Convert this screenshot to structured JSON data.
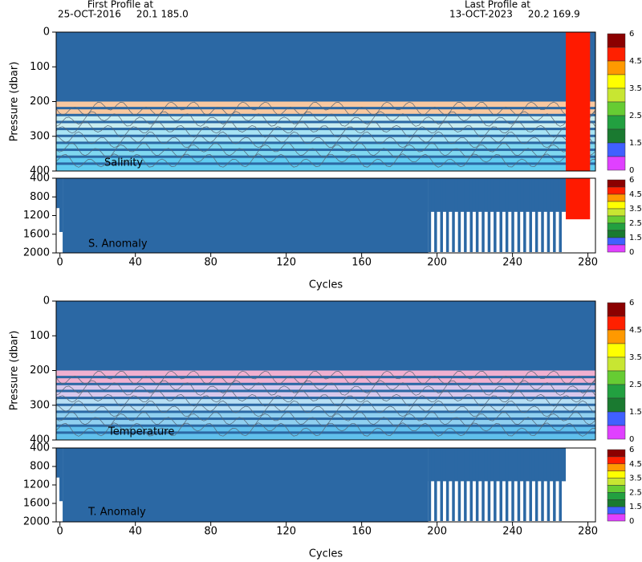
{
  "header": {
    "first_label": "First Profile at",
    "first_info": "25-OCT-2016     20.1 185.0",
    "last_label": "Last Profile at",
    "last_info": "13-OCT-2023     20.2 169.9"
  },
  "chart_data": [
    {
      "type": "profile",
      "label": "Salinity",
      "ylabel": "Pressure (dbar)",
      "xlim": [
        -2,
        284
      ],
      "ylim": [
        400,
        0
      ],
      "yticks": [
        0,
        100,
        200,
        300,
        400
      ],
      "colorbar_ticks": [
        6,
        4.5,
        3.5,
        2.5,
        1.5,
        0
      ],
      "colorbar_colors": [
        "#8b0000",
        "#ff2000",
        "#ff9900",
        "#ffff00",
        "#c8e632",
        "#66cc33",
        "#22a040",
        "#1a7a30",
        "#4060ff",
        "#e040ff"
      ],
      "flag": true
    },
    {
      "type": "anomaly",
      "label": "S. Anomaly",
      "xlabel": "Cycles",
      "xlim": [
        -2,
        284
      ],
      "ylim": [
        2000,
        400
      ],
      "xticks": [
        0,
        40,
        80,
        120,
        160,
        200,
        240,
        280
      ],
      "yticks": [
        400,
        800,
        1200,
        1600,
        2000
      ],
      "colorbar_ticks": [
        6,
        4.5,
        3.5,
        2.5,
        1.5,
        0
      ],
      "colorbar_colors": [
        "#8b0000",
        "#ff2000",
        "#ff9900",
        "#ffff00",
        "#c8e632",
        "#66cc33",
        "#22a040",
        "#1a7a30",
        "#4060ff",
        "#e040ff"
      ],
      "flag": true
    },
    {
      "type": "profile",
      "label": "Temperature",
      "ylabel": "Pressure (dbar)",
      "xlim": [
        -2,
        284
      ],
      "ylim": [
        400,
        0
      ],
      "yticks": [
        0,
        100,
        200,
        300,
        400
      ],
      "colorbar_ticks": [
        6,
        4.5,
        3.5,
        2.5,
        1.5,
        0
      ],
      "colorbar_colors": [
        "#8b0000",
        "#ff2000",
        "#ff9900",
        "#ffff00",
        "#c8e632",
        "#66cc33",
        "#22a040",
        "#1a7a30",
        "#4060ff",
        "#e040ff"
      ],
      "flag": false
    },
    {
      "type": "anomaly",
      "label": "T. Anomaly",
      "xlabel": "Cycles",
      "xlim": [
        -2,
        284
      ],
      "ylim": [
        2000,
        400
      ],
      "xticks": [
        0,
        40,
        80,
        120,
        160,
        200,
        240,
        280
      ],
      "yticks": [
        400,
        800,
        1200,
        1600,
        2000
      ],
      "colorbar_ticks": [
        6,
        4.5,
        3.5,
        2.5,
        1.5,
        0
      ],
      "colorbar_colors": [
        "#8b0000",
        "#ff2000",
        "#ff9900",
        "#ffff00",
        "#c8e632",
        "#66cc33",
        "#22a040",
        "#1a7a30",
        "#4060ff",
        "#e040ff"
      ],
      "flag": false
    }
  ]
}
